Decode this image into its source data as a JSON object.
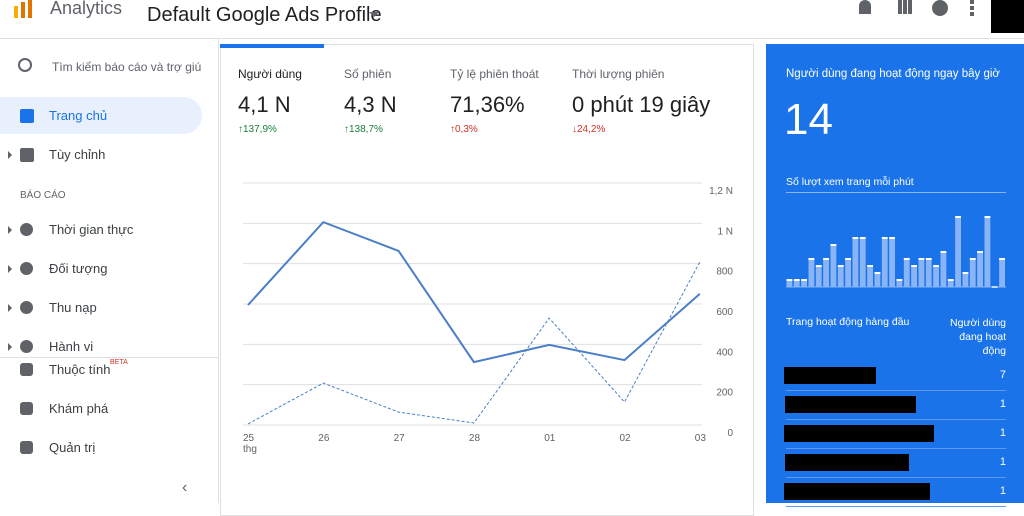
{
  "header": {
    "app": "Analytics",
    "profile": "Default Google Ads Profile"
  },
  "sidebar": {
    "search": "Tìm kiếm báo cáo và trợ giú",
    "items": [
      "Trang chủ",
      "Tùy chỉnh"
    ],
    "section": "BÁO CÁO",
    "reports": [
      "Thời gian thực",
      "Đối tượng",
      "Thu nạp",
      "Hành vi"
    ],
    "bottom": [
      {
        "label": "Thuộc tính",
        "badge": "BETA"
      },
      {
        "label": "Khám phá"
      },
      {
        "label": "Quản trị"
      }
    ]
  },
  "metrics": [
    {
      "label": "Người dùng",
      "value": "4,1 N",
      "change": "↑137,9%",
      "color": "#188038"
    },
    {
      "label": "Số phiên",
      "value": "4,3 N",
      "change": "↑138,7%",
      "color": "#188038"
    },
    {
      "label": "Tỷ lệ phiên thoát",
      "value": "71,36%",
      "change": "↑0,3%",
      "color": "#d93025"
    },
    {
      "label": "Thời lượng phiên",
      "value": "0 phút 19 giây",
      "change": "↓24,2%",
      "color": "#d93025"
    }
  ],
  "chart_data": {
    "type": "line",
    "categories": [
      "25",
      "26",
      "27",
      "28",
      "01",
      "02",
      "03"
    ],
    "x_sublabel": "thg",
    "series": [
      {
        "color": "#4a7fc8",
        "style": "solid",
        "values": [
          595,
          1006,
          863,
          312,
          397,
          322,
          650
        ]
      },
      {
        "color": "#4a7fc8",
        "style": "dashed",
        "values": [
          5,
          208,
          64,
          10,
          530,
          114,
          808
        ]
      }
    ],
    "ylim": [
      0,
      1200
    ],
    "yticks": [
      0,
      200,
      400,
      600,
      800,
      {
        "value": 1000,
        "label": "1 N"
      },
      {
        "value": 1200,
        "label": "1,2 N"
      }
    ],
    "grid": true
  },
  "realtime": {
    "title": "Người dùng đang hoạt động ngay bây giờ",
    "value": "14",
    "subtitle": "Số lượt xem trang mỗi phút",
    "bars": [
      1,
      1,
      1,
      4,
      3,
      4,
      6,
      3,
      4,
      7,
      7,
      3,
      2,
      7,
      7,
      1,
      4,
      3,
      4,
      4,
      3,
      5,
      1,
      10,
      2,
      4,
      5,
      10,
      0,
      4
    ],
    "table_header": [
      "Trang hoạt động hàng đầu",
      "Người dùng đang hoạt động"
    ],
    "rows": [
      7,
      1,
      1,
      1,
      1
    ]
  }
}
